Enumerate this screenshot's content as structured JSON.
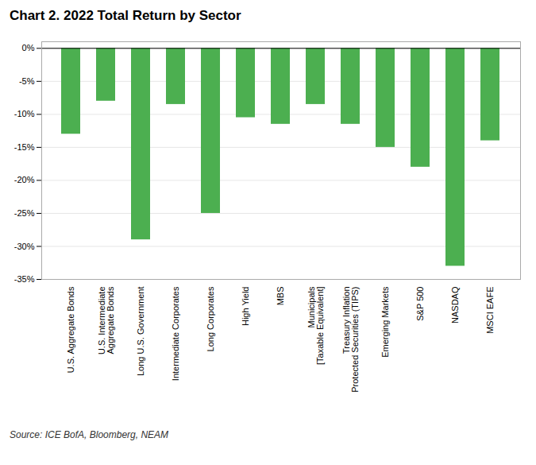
{
  "chart_data": {
    "type": "bar",
    "title": "Chart 2. 2022 Total Return by Sector",
    "categories": [
      "U.S. Aggregate Bonds",
      "U.S. Intermediate\nAggregate Bonds",
      "Long U.S. Government",
      "Intermediate Corporates",
      "Long Corporates",
      "High Yield",
      "MBS",
      "Municipals\n[Taxable Equivalent]",
      "Treasury Inflation\nProtected Securities (TIPS)",
      "Emerging Markets",
      "S&P 500",
      "NASDAQ",
      "MSCI EAFE"
    ],
    "values": [
      -13.0,
      -8.0,
      -29.0,
      -8.5,
      -25.0,
      -10.5,
      -11.5,
      -8.5,
      -11.5,
      -15.0,
      -18.0,
      -33.0,
      -14.0
    ],
    "color": "#4CAF50",
    "ylim": [
      -35,
      1
    ],
    "yticks": [
      {
        "value": 0,
        "label": "0%"
      },
      {
        "value": -5,
        "label": "-5%"
      },
      {
        "value": -10,
        "label": "-10%"
      },
      {
        "value": -15,
        "label": "-15%"
      },
      {
        "value": -20,
        "label": "-20%"
      },
      {
        "value": -25,
        "label": "-25%"
      },
      {
        "value": -30,
        "label": "-30%"
      },
      {
        "value": -35,
        "label": "-35%"
      }
    ],
    "grid": true,
    "caption": "Source: ICE BofA, Bloomberg, NEAM"
  }
}
